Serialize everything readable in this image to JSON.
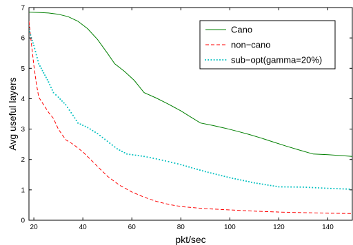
{
  "chart_data": {
    "type": "line",
    "title": "",
    "xlabel": "pkt/sec",
    "ylabel": "Avg useful layers",
    "xlim": [
      18,
      150
    ],
    "ylim": [
      0,
      7
    ],
    "xticks": [
      20,
      40,
      60,
      80,
      100,
      120,
      140
    ],
    "xtick_labels": [
      "20",
      "40",
      "60",
      "80",
      "100",
      "120",
      "140"
    ],
    "yticks": [
      0,
      1,
      2,
      3,
      4,
      5,
      6,
      7
    ],
    "ytick_labels": [
      "0",
      "1",
      "2",
      "3",
      "4",
      "5",
      "6",
      "7"
    ],
    "grid": false,
    "legend_position": "top-right",
    "series": [
      {
        "name": "Cano",
        "color": "#007f00",
        "style": "solid",
        "x": [
          18,
          22,
          26,
          30,
          34,
          38,
          42,
          46,
          50,
          53,
          57,
          61,
          65,
          70,
          75,
          80,
          84,
          88,
          93,
          98,
          103,
          108,
          113,
          118,
          123,
          128,
          134,
          140,
          145,
          150
        ],
        "y": [
          6.85,
          6.84,
          6.82,
          6.78,
          6.7,
          6.55,
          6.3,
          5.95,
          5.5,
          5.15,
          4.9,
          4.6,
          4.2,
          4.02,
          3.82,
          3.6,
          3.4,
          3.2,
          3.12,
          3.03,
          2.93,
          2.82,
          2.7,
          2.57,
          2.44,
          2.32,
          2.18,
          2.16,
          2.13,
          2.1
        ]
      },
      {
        "name": "non−cano",
        "color": "#ff0000",
        "style": "dashed",
        "x": [
          18,
          19,
          20,
          21,
          22,
          24,
          26,
          28,
          30,
          33,
          36,
          40,
          45,
          50,
          55,
          60,
          65,
          70,
          75,
          80,
          90,
          100,
          110,
          120,
          130,
          140,
          150
        ],
        "y": [
          6.55,
          5.8,
          5.1,
          4.5,
          4.05,
          3.8,
          3.55,
          3.35,
          3.0,
          2.65,
          2.5,
          2.25,
          1.85,
          1.45,
          1.15,
          0.93,
          0.76,
          0.62,
          0.52,
          0.45,
          0.38,
          0.34,
          0.3,
          0.27,
          0.25,
          0.23,
          0.22
        ]
      },
      {
        "name": "sub−opt(gamma=20%)",
        "color": "#00bfbf",
        "style": "dotted",
        "x": [
          18,
          19,
          20,
          21,
          22,
          24,
          26,
          28,
          30,
          33,
          36,
          38,
          42,
          46,
          50,
          54,
          58,
          65,
          70,
          75,
          80,
          90,
          100,
          110,
          120,
          130,
          140,
          150
        ],
        "y": [
          6.3,
          6.0,
          5.75,
          5.45,
          5.15,
          4.85,
          4.55,
          4.2,
          4.05,
          3.8,
          3.45,
          3.2,
          3.05,
          2.85,
          2.6,
          2.35,
          2.18,
          2.1,
          2.02,
          1.93,
          1.83,
          1.6,
          1.4,
          1.23,
          1.1,
          1.09,
          1.05,
          1.02
        ]
      }
    ]
  }
}
